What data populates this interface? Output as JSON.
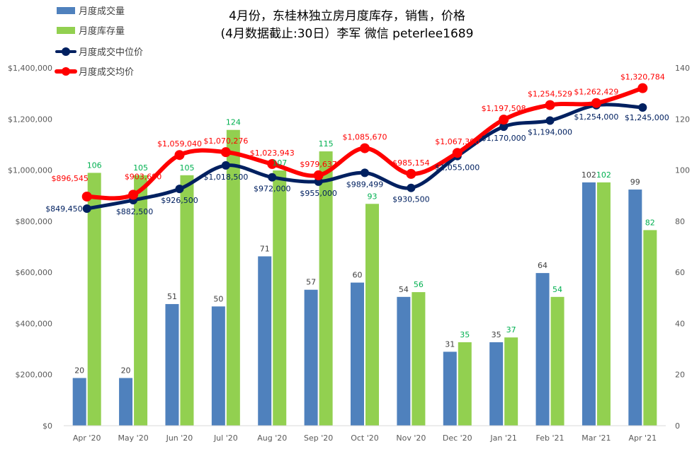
{
  "chart_data": {
    "type": "bar",
    "title": "4月份，东桂林独立房月度库存，销售，价格",
    "subtitle": "(4月数据截止:30日）李军  微信 peterlee1689",
    "categories": [
      "Apr '20",
      "May '20",
      "Jun '20",
      "Jul '20",
      "Aug '20",
      "Sep '20",
      "Oct '20",
      "Nov '20",
      "Dec '20",
      "Jan '21",
      "Feb '21",
      "Mar '21",
      "Apr '21"
    ],
    "left_axis": {
      "range": [
        0,
        1400000
      ],
      "ticks": [
        "$0",
        "$200,000",
        "$400,000",
        "$600,000",
        "$800,000",
        "$1,000,000",
        "$1,200,000",
        "$1,400,000"
      ]
    },
    "right_axis": {
      "range": [
        0,
        150
      ],
      "ticks": [
        "0",
        "20",
        "40",
        "60",
        "80",
        "100",
        "120",
        "140"
      ]
    },
    "legend_position": "top-left",
    "grid": false,
    "series": [
      {
        "name": "月度成交量",
        "kind": "bar",
        "axis": "right",
        "color": "#4f81bd",
        "label_color": "#404040",
        "values": [
          20,
          20,
          51,
          50,
          71,
          57,
          60,
          54,
          31,
          35,
          64,
          102,
          99
        ],
        "labels": [
          "20",
          "20",
          "51",
          "50",
          "71",
          "57",
          "60",
          "54",
          "31",
          "35",
          "64",
          "102",
          "99"
        ]
      },
      {
        "name": "月度库存量",
        "kind": "bar",
        "axis": "right",
        "color": "#92d050",
        "label_color": "#00b050",
        "values": [
          106,
          105,
          105,
          124,
          107,
          115,
          93,
          56,
          35,
          37,
          54,
          102,
          82
        ],
        "labels": [
          "106",
          "105",
          "105",
          "124",
          "107",
          "115",
          "93",
          "56",
          "35",
          "37",
          "54",
          "102",
          "82"
        ]
      },
      {
        "name": "月度成交中位价",
        "kind": "line",
        "axis": "left",
        "color": "#002060",
        "label_color": "#002060",
        "values": [
          849450,
          882500,
          926500,
          1018500,
          972000,
          955000,
          989499,
          930500,
          1055000,
          1170000,
          1194000,
          1254000,
          1245000
        ],
        "labels": [
          "$849,450",
          "$882,500",
          "$926,500",
          "$1,018,500",
          "$972,000",
          "$955,000",
          "$989,499",
          "$930,500",
          "$1,055,000",
          "$1,170,000",
          "$1,194,000",
          "$1,254,000",
          "$1,245,000"
        ]
      },
      {
        "name": "月度成交均价",
        "kind": "line",
        "axis": "left",
        "color": "#ff0000",
        "label_color": "#ff0000",
        "values": [
          896545,
          903690,
          1059040,
          1070276,
          1023943,
          979637,
          1085670,
          985154,
          1067390,
          1197508,
          1254529,
          1262429,
          1320784
        ],
        "labels": [
          "$896,545",
          "$903,690",
          "$1,059,040",
          "$1,070,276",
          "$1,023,943",
          "$979,637",
          "$1,085,670",
          "$985,154",
          "$1,067,390",
          "$1,197,508",
          "$1,254,529",
          "$1,262,429",
          "$1,320,784"
        ]
      }
    ]
  }
}
